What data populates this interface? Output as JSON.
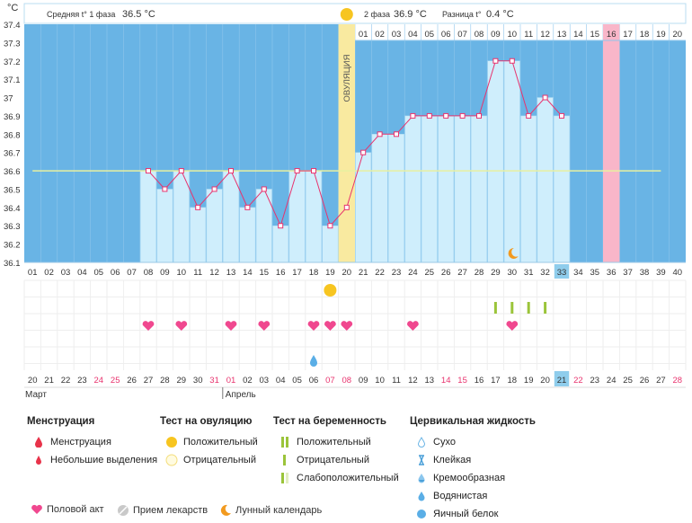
{
  "header": {
    "unit": "°C",
    "phase1_label": "Средняя t° 1 фаза",
    "phase1_value": "36.5 °C",
    "phase2_label": "2 фаза",
    "phase2_value": "36.9 °C",
    "diff_label": "Разница t°",
    "diff_value": "0.4 °C",
    "ovulation_label": "ОВУЛЯЦИЯ"
  },
  "chart_data": {
    "type": "line",
    "y_ticks": [
      "37.4",
      "37.3",
      "37.2",
      "37.1",
      "37",
      "36.9",
      "36.8",
      "36.7",
      "36.6",
      "36.5",
      "36.4",
      "36.3",
      "36.2",
      "36.1"
    ],
    "ylim": [
      36.1,
      37.4
    ],
    "cycle_days": [
      "01",
      "02",
      "03",
      "04",
      "05",
      "06",
      "07",
      "08",
      "09",
      "10",
      "11",
      "12",
      "13",
      "14",
      "15",
      "16",
      "17",
      "18",
      "19",
      "20",
      "21",
      "22",
      "23",
      "24",
      "25",
      "26",
      "27",
      "28",
      "29",
      "30",
      "31",
      "32",
      "33",
      "34",
      "35",
      "36",
      "37",
      "38",
      "39",
      "40"
    ],
    "temperatures": [
      null,
      null,
      null,
      null,
      null,
      null,
      null,
      36.6,
      36.5,
      36.6,
      36.4,
      36.5,
      36.6,
      36.4,
      36.5,
      36.3,
      36.6,
      36.6,
      36.3,
      36.4,
      36.7,
      36.8,
      36.8,
      36.9,
      36.9,
      36.9,
      36.9,
      36.9,
      37.2,
      37.2,
      36.9,
      37.0,
      36.9,
      null,
      null,
      null,
      null,
      null,
      null,
      null
    ],
    "coverline": 36.6,
    "ovulation_day": 20,
    "phase2_day_labels": [
      "01",
      "02",
      "03",
      "04",
      "05",
      "06",
      "07",
      "08",
      "09",
      "10",
      "11",
      "12",
      "13",
      "14",
      "15",
      "16",
      "17",
      "18",
      "19",
      "20"
    ],
    "highlight_cycle_day": "33",
    "highlight_phase2_day": "16",
    "dates": [
      "20",
      "21",
      "22",
      "23",
      "24",
      "25",
      "26",
      "27",
      "28",
      "29",
      "30",
      "31",
      "01",
      "02",
      "03",
      "04",
      "05",
      "06",
      "07",
      "08",
      "09",
      "10",
      "11",
      "12",
      "13",
      "14",
      "15",
      "16",
      "17",
      "18",
      "19",
      "20",
      "21",
      "22",
      "23",
      "24",
      "25",
      "26",
      "27",
      "28"
    ],
    "date_red": [
      false,
      false,
      false,
      false,
      true,
      true,
      false,
      false,
      false,
      false,
      false,
      true,
      true,
      false,
      false,
      false,
      false,
      false,
      true,
      true,
      false,
      false,
      false,
      false,
      false,
      true,
      true,
      false,
      false,
      false,
      false,
      false,
      false,
      true,
      false,
      false,
      false,
      false,
      false,
      true
    ],
    "month_labels": [
      "Март",
      "Апрель"
    ],
    "sex_days": [
      8,
      10,
      13,
      15,
      18,
      19,
      20,
      24,
      30
    ],
    "ovulation_test_positive_day": 19,
    "pregnancy_test_negative_days": [
      29,
      30,
      31,
      32
    ],
    "moon_day": 30,
    "cervical_watery_day": 18
  },
  "colors": {
    "plot_bg": "#69b4e5",
    "phase2_bg": "#ffffff",
    "day_fill": "#cfeefc",
    "line": "#e8336e",
    "coverline": "#e8f0a0",
    "ovulation_band": "#f9eaa0",
    "highlight_col": "#f9b6c9",
    "red_text": "#e8336e",
    "today_box": "#8fcdec"
  },
  "legend": {
    "menstruation": {
      "title": "Менструация",
      "items": [
        "Менструация",
        "Небольшие выделения"
      ]
    },
    "ovulation_test": {
      "title": "Тест на овуляцию",
      "items": [
        "Положительный",
        "Отрицательный"
      ]
    },
    "pregnancy_test": {
      "title": "Тест на беременность",
      "items": [
        "Положительный",
        "Отрицательный",
        "Слабоположительный"
      ]
    },
    "cervical_fluid": {
      "title": "Цервикальная жидкость",
      "items": [
        "Сухо",
        "Клейкая",
        "Кремообразная",
        "Водянистая",
        "Яичный белок"
      ]
    },
    "bottom": [
      "Половой акт",
      "Прием лекарств",
      "Лунный календарь"
    ]
  }
}
